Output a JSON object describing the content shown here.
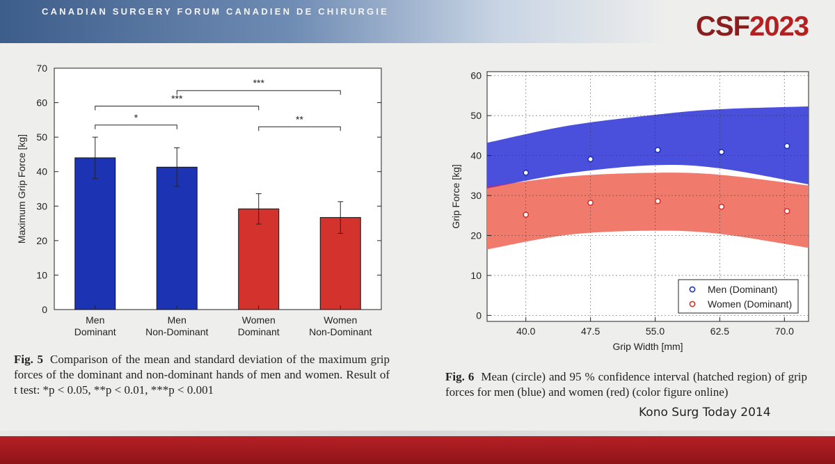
{
  "header": {
    "banner_text": "CANADIAN SURGERY FORUM CANADIEN DE CHIRURGIE",
    "logo_prefix": "CSF",
    "logo_year": "2023"
  },
  "colors": {
    "men": "#1c34b4",
    "women": "#d3322d",
    "men_band": "#4a4fdc",
    "women_band": "#f07a6c",
    "overlap_band": "#b52a78"
  },
  "fig5": {
    "caption_label": "Fig. 5",
    "caption_text": "Comparison of the mean and standard deviation of the maximum grip forces of the dominant and non-dominant hands of men and women. Result of t test: *p < 0.05, **p < 0.01, ***p < 0.001"
  },
  "fig6": {
    "caption_label": "Fig. 6",
    "caption_text": "Mean (circle) and 95 % confidence interval (hatched region) of grip forces for men (blue) and women (red) (color figure online)"
  },
  "reference": "Kono Surg Today 2014",
  "chart_data": [
    {
      "type": "bar",
      "ylabel": "Maximum Grip Force [kg]",
      "xlabel": "",
      "ylim": [
        0,
        70
      ],
      "yticks": [
        0,
        10,
        20,
        30,
        40,
        50,
        60,
        70
      ],
      "categories": [
        [
          "Men",
          "Dominant"
        ],
        [
          "Men",
          "Non-Dominant"
        ],
        [
          "Women",
          "Dominant"
        ],
        [
          "Women",
          "Non-Dominant"
        ]
      ],
      "values": [
        44,
        41.3,
        29.2,
        26.7
      ],
      "std": [
        6,
        5.6,
        4.4,
        4.6
      ],
      "bar_colors": [
        "#1c34b4",
        "#1c34b4",
        "#d3322d",
        "#d3322d"
      ],
      "significance": [
        {
          "from": 0,
          "to": 1,
          "y": 53.5,
          "label": "*"
        },
        {
          "from": 0,
          "to": 2,
          "y": 59,
          "label": "***"
        },
        {
          "from": 1,
          "to": 3,
          "y": 63.5,
          "label": "***"
        },
        {
          "from": 2,
          "to": 3,
          "y": 53,
          "label": "**"
        }
      ],
      "grid": false
    },
    {
      "type": "scatter",
      "xlabel": "Grip Width [mm]",
      "ylabel": "Grip Force [kg]",
      "xlim": [
        35.5,
        72.8
      ],
      "ylim": [
        -1.5,
        61
      ],
      "xticks": [
        "40.0",
        "47.5",
        "55.0",
        "62.5",
        "70.0"
      ],
      "xtick_values": [
        40,
        47.5,
        55,
        62.5,
        70
      ],
      "yticks": [
        0,
        10,
        20,
        30,
        40,
        50,
        60
      ],
      "grid": true,
      "legend_position": "bottom-right",
      "series": [
        {
          "name": "Men (Dominant)",
          "x": [
            40,
            47.5,
            55.3,
            62.7,
            70.3
          ],
          "y": [
            35.7,
            39.1,
            41.4,
            40.9,
            42.4
          ],
          "ci_lower": [
            [
              35.5,
              31.8
            ],
            [
              45,
              35.6
            ],
            [
              55,
              37.6
            ],
            [
              62.5,
              36.8
            ],
            [
              72.8,
              32.8
            ]
          ],
          "ci_upper": [
            [
              35.5,
              43.2
            ],
            [
              45,
              47.5
            ],
            [
              55,
              50.2
            ],
            [
              62.5,
              51.6
            ],
            [
              72.8,
              52.3
            ]
          ]
        },
        {
          "name": "Women (Dominant)",
          "x": [
            40,
            47.5,
            55.3,
            62.7,
            70.3
          ],
          "y": [
            25.2,
            28.2,
            28.6,
            27.2,
            26.1
          ],
          "ci_lower": [
            [
              35.5,
              16.5
            ],
            [
              45,
              20.2
            ],
            [
              55,
              21.2
            ],
            [
              62.5,
              20.4
            ],
            [
              72.8,
              16.9
            ]
          ],
          "ci_upper": [
            [
              35.5,
              32.2
            ],
            [
              45,
              34.8
            ],
            [
              55,
              35.7
            ],
            [
              62.5,
              35.2
            ],
            [
              72.8,
              32.5
            ]
          ]
        }
      ]
    }
  ]
}
